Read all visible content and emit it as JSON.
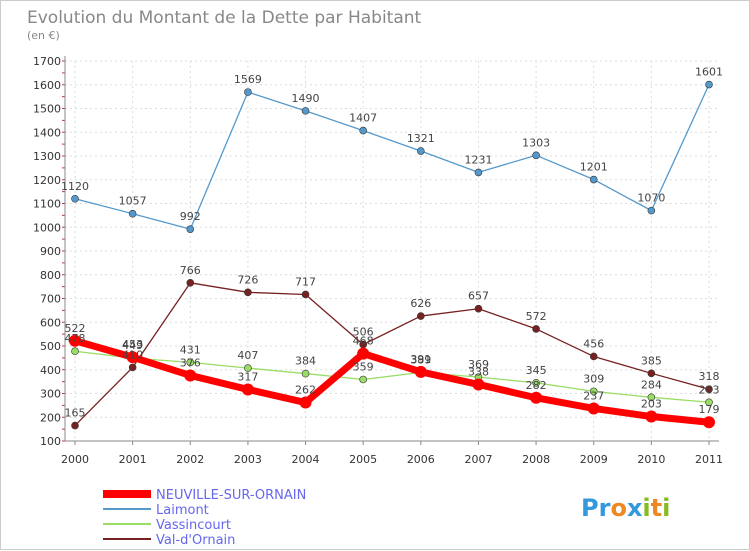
{
  "chart_data": {
    "type": "line",
    "title": "Evolution du Montant de la Dette par Habitant",
    "subtitle": "(en €)",
    "x": [
      "2000",
      "2001",
      "2002",
      "2003",
      "2004",
      "2005",
      "2006",
      "2007",
      "2008",
      "2009",
      "2010",
      "2011"
    ],
    "yticks": [
      100,
      200,
      300,
      400,
      500,
      600,
      700,
      800,
      900,
      1000,
      1100,
      1200,
      1300,
      1400,
      1500,
      1600,
      1700
    ],
    "ylim": [
      100,
      1700
    ],
    "grid": true,
    "legend_position": "bottom-left",
    "series": [
      {
        "name": "NEUVILLE-SUR-ORNAIN",
        "color": "#ff0000",
        "values": [
          522,
          453,
          376,
          317,
          262,
          468,
          391,
          338,
          282,
          237,
          203,
          179
        ]
      },
      {
        "name": "Laimont",
        "color": "#5599cc",
        "values": [
          1120,
          1057,
          992,
          1569,
          1490,
          1407,
          1321,
          1231,
          1303,
          1201,
          1070,
          1601
        ]
      },
      {
        "name": "Vassincourt",
        "color": "#99dd66",
        "values": [
          478,
          449,
          431,
          407,
          384,
          359,
          389,
          369,
          345,
          309,
          284,
          263
        ]
      },
      {
        "name": "Val-d'Ornain",
        "color": "#772222",
        "values": [
          165,
          410,
          766,
          726,
          717,
          506,
          626,
          657,
          572,
          456,
          385,
          318
        ]
      }
    ]
  },
  "branding": {
    "logo_letters": [
      "P",
      "r",
      "o",
      "x",
      "i",
      "t",
      "i"
    ],
    "logo_colors": [
      "#3399dd",
      "#3399dd",
      "#ee8822",
      "#3399dd",
      "#88bb22",
      "#ee8822",
      "#88bb22"
    ]
  }
}
